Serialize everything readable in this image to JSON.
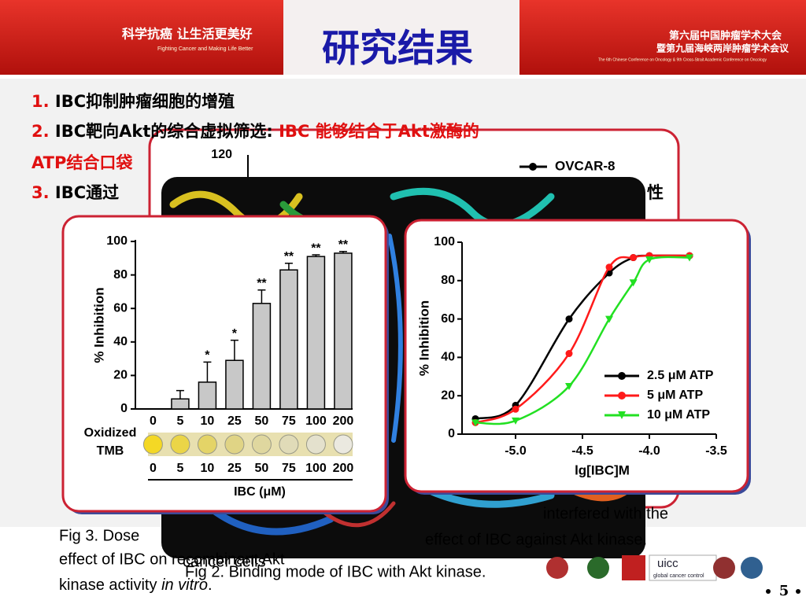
{
  "header": {
    "slogan": "科学抗癌 让生活更美好",
    "slogan_en": "Fighting Cancer and Making Life Better",
    "title": "研究结果",
    "conference": "第六届中国肿瘤学术大会",
    "conference_2": "暨第九届海峡两岸肿瘤学术会议",
    "conference_en": "The 6th Chinese Conference on Oncology & 9th Cross-Strait Academic Conference on Oncology"
  },
  "bullets": [
    {
      "number": "1.",
      "text": "IBC抑制肿瘤细胞的增殖"
    },
    {
      "number": "2.",
      "text": "IBC靶向Akt的综合虚拟筛选:",
      "highlight": [
        "IBC 能够结合于Akt激酶的",
        "ATP结合口袋"
      ]
    },
    {
      "number": "3.",
      "text": "IBC通过",
      "tail": "性"
    }
  ],
  "background_chart": {
    "ytick": "120",
    "legend": "OVCAR-8"
  },
  "captions": {
    "fig3": [
      "Fig 3. Dose",
      "effect of IBC on recombinant Akt",
      "kinase activity"
    ],
    "fig3_italic": "in vitro",
    "fig3_end": ".",
    "fig1_fragment": "cancer cells",
    "fig2": "Fig 2. Binding mode of IBC with Akt kinase.",
    "fig4": [
      "interfered with the",
      "effect of IBC against Akt kinase."
    ]
  },
  "logos": [
    "uicc",
    "global cancer control"
  ],
  "page": "5",
  "chart_data": [
    {
      "type": "bar",
      "ylabel": "% Inhibition",
      "xlabel": "IBC (μM)",
      "strip_label": [
        "Oxidized",
        "TMB"
      ],
      "categories": [
        "0",
        "5",
        "10",
        "25",
        "50",
        "75",
        "100",
        "200"
      ],
      "values": [
        0,
        6,
        16,
        29,
        63,
        83,
        91,
        93
      ],
      "errors": [
        0,
        5,
        12,
        12,
        8,
        4,
        1,
        1
      ],
      "annotations": [
        null,
        null,
        "*",
        "*",
        "**",
        "**",
        "**",
        "**"
      ],
      "ylim": [
        0,
        100
      ],
      "yticks": [
        0,
        20,
        40,
        60,
        80,
        100
      ],
      "color": "#c8c8c8"
    },
    {
      "type": "line",
      "ylabel": "% Inhibition",
      "xlabel": "lg[IBC]M",
      "x": [
        -5.3,
        -5.0,
        -4.6,
        -4.3,
        -4.12,
        -4.0,
        -3.7
      ],
      "series": [
        {
          "name": "2.5 μM ATP",
          "color": "#000000",
          "values": [
            8,
            15,
            60,
            84,
            92,
            93,
            93
          ]
        },
        {
          "name": "5 μM ATP",
          "color": "#ff1a1a",
          "values": [
            6,
            13,
            42,
            87,
            92,
            93,
            93
          ]
        },
        {
          "name": "10 μM ATP",
          "color": "#22e022",
          "values": [
            6,
            7,
            25,
            60,
            79,
            91,
            92
          ]
        }
      ],
      "xlim": [
        -5.4,
        -3.5
      ],
      "xticks": [
        {
          "value": -5,
          "label": "-5.0"
        },
        -4.5,
        {
          "value": -4,
          "label": "-4.0"
        },
        -3.5
      ],
      "ylim": [
        0,
        100
      ],
      "yticks": [
        0,
        20,
        40,
        60,
        80,
        100
      ]
    }
  ]
}
